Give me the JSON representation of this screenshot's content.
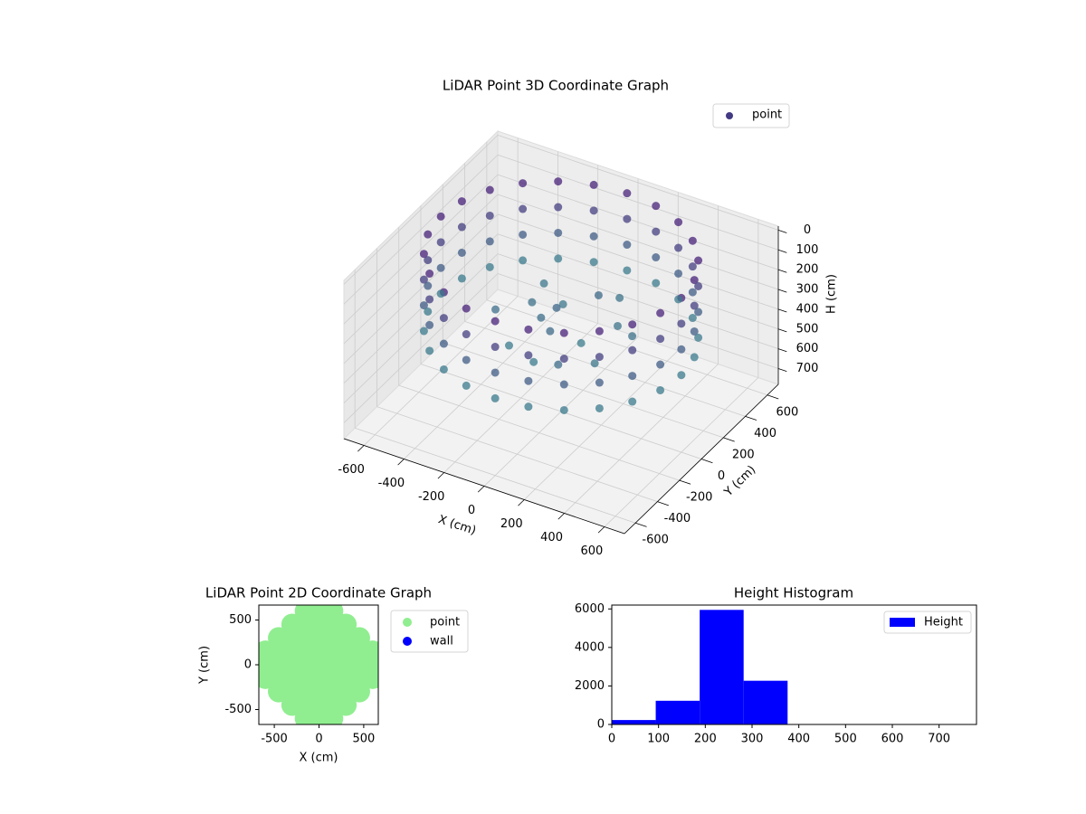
{
  "chart_data": [
    {
      "type": "scatter3d",
      "title": "LiDAR Point 3D Coordinate Graph",
      "xlabel": "X (cm)",
      "ylabel": "Y (cm)",
      "zlabel": "H (cm)",
      "xlim": [
        -700,
        700
      ],
      "ylim": [
        -700,
        700
      ],
      "zlim": [
        780,
        -20
      ],
      "xticks": [
        -600,
        -400,
        -200,
        0,
        200,
        400,
        600
      ],
      "yticks": [
        -600,
        -400,
        -200,
        0,
        200,
        400,
        600
      ],
      "zticks": [
        0,
        100,
        200,
        300,
        400,
        500,
        600,
        700
      ],
      "legend": "upper right",
      "series": [
        {
          "name": "point",
          "color": "#433a83",
          "colormap": [
            "#48217a",
            "#3b7c8c"
          ],
          "x": [
            600,
            580,
            520,
            424,
            300,
            155,
            0,
            -155,
            -300,
            -424,
            -520,
            -580,
            -600,
            -580,
            -520,
            -424,
            -300,
            -155,
            0,
            155,
            300,
            424,
            520,
            580,
            600,
            580,
            520,
            424,
            300,
            155,
            0,
            -155,
            -300,
            -424,
            -520,
            -580,
            -600,
            -580,
            -520,
            -424,
            -300,
            -155,
            0,
            155,
            300,
            424,
            520,
            580,
            600,
            580,
            520,
            424,
            300,
            155,
            0,
            -155,
            -300,
            -424,
            -520,
            -580,
            -600,
            -580,
            -520,
            -424,
            -300,
            -155,
            0,
            155,
            300,
            424,
            520,
            580,
            600,
            580,
            520,
            424,
            300,
            155,
            0,
            -155,
            -300,
            -424,
            -520,
            -580,
            -600,
            -580,
            -520,
            -424,
            -300,
            -155,
            0,
            155,
            300,
            424,
            520,
            580,
            -200,
            -100,
            0,
            100,
            200,
            -300,
            -150,
            50,
            250,
            150,
            -50,
            -250,
            300,
            0,
            100,
            -100
          ],
          "y": [
            0,
            155,
            300,
            424,
            520,
            580,
            600,
            580,
            520,
            424,
            300,
            155,
            0,
            -155,
            -300,
            -424,
            -520,
            -580,
            -600,
            -580,
            -520,
            -424,
            -300,
            -155,
            0,
            155,
            300,
            424,
            520,
            580,
            600,
            580,
            520,
            424,
            300,
            155,
            0,
            -155,
            -300,
            -424,
            -520,
            -580,
            -600,
            -580,
            -520,
            -424,
            -300,
            -155,
            0,
            155,
            300,
            424,
            520,
            580,
            600,
            580,
            520,
            424,
            300,
            155,
            0,
            -155,
            -300,
            -424,
            -520,
            -580,
            -600,
            -580,
            -520,
            -424,
            -300,
            -155,
            0,
            155,
            300,
            424,
            520,
            580,
            600,
            580,
            520,
            424,
            300,
            155,
            0,
            -155,
            -300,
            -424,
            -520,
            -580,
            -600,
            -580,
            -520,
            -424,
            -300,
            -155,
            100,
            200,
            -100,
            0,
            150,
            -50,
            -200,
            250,
            -150,
            -300,
            50,
            300,
            100,
            -250,
            350,
            0
          ],
          "h": [
            0,
            0,
            0,
            0,
            0,
            0,
            0,
            0,
            0,
            0,
            0,
            0,
            0,
            0,
            0,
            0,
            0,
            0,
            0,
            0,
            0,
            0,
            0,
            0,
            130,
            130,
            130,
            130,
            130,
            130,
            130,
            130,
            130,
            130,
            130,
            130,
            130,
            130,
            130,
            130,
            130,
            130,
            130,
            130,
            130,
            130,
            130,
            130,
            260,
            260,
            260,
            260,
            260,
            260,
            260,
            260,
            260,
            260,
            260,
            260,
            260,
            260,
            260,
            260,
            260,
            260,
            260,
            260,
            260,
            260,
            260,
            260,
            390,
            390,
            390,
            390,
            390,
            390,
            390,
            390,
            390,
            390,
            390,
            390,
            390,
            390,
            390,
            390,
            390,
            390,
            390,
            390,
            390,
            390,
            390,
            390,
            350,
            380,
            320,
            400,
            360,
            340,
            390,
            310,
            370,
            330,
            300,
            380,
            350,
            395,
            360,
            340
          ]
        }
      ]
    },
    {
      "type": "scatter",
      "title": "LiDAR Point 2D Coordinate Graph",
      "xlabel": "X (cm)",
      "ylabel": "Y (cm)",
      "xlim": [
        -673,
        663
      ],
      "ylim": [
        -667,
        667
      ],
      "xticks": [
        -500,
        0,
        500
      ],
      "yticks": [
        -500,
        0,
        500
      ],
      "legend": "outside upper left",
      "series": [
        {
          "name": "point",
          "color": "#90ee90",
          "x": [
            -600,
            -600,
            -600,
            -450,
            -450,
            -450,
            -450,
            -450,
            -300,
            -300,
            -300,
            -300,
            -300,
            -300,
            -300,
            -150,
            -150,
            -150,
            -150,
            -150,
            -150,
            -150,
            -150,
            -150,
            0,
            0,
            0,
            0,
            0,
            0,
            0,
            0,
            0,
            150,
            150,
            150,
            150,
            150,
            150,
            150,
            150,
            150,
            300,
            300,
            300,
            300,
            300,
            300,
            300,
            450,
            450,
            450,
            450,
            450,
            600,
            600,
            600
          ],
          "y": [
            -150,
            0,
            150,
            -300,
            -150,
            0,
            150,
            300,
            -450,
            -300,
            -150,
            0,
            150,
            300,
            450,
            -600,
            -450,
            -300,
            -150,
            0,
            150,
            300,
            450,
            600,
            -600,
            -450,
            -300,
            -150,
            0,
            150,
            300,
            450,
            600,
            -600,
            -450,
            -300,
            -150,
            0,
            150,
            300,
            450,
            600,
            -450,
            -300,
            -150,
            0,
            150,
            300,
            450,
            -300,
            -150,
            0,
            150,
            300,
            -150,
            0,
            150
          ]
        },
        {
          "name": "wall",
          "color": "#0000ff",
          "x": [],
          "y": []
        }
      ]
    },
    {
      "type": "histogram",
      "title": "Height Histogram",
      "bins": [
        0,
        94,
        188,
        282,
        376,
        470,
        564,
        658,
        752
      ],
      "xlim": [
        0,
        780
      ],
      "ylim": [
        0,
        6200
      ],
      "xticks": [
        0,
        100,
        200,
        300,
        400,
        500,
        600,
        700
      ],
      "yticks": [
        0,
        2000,
        4000,
        6000
      ],
      "legend": "upper right",
      "series": [
        {
          "name": "Height",
          "color": "#0000ff",
          "values": [
            230,
            1230,
            5950,
            2270,
            0,
            0,
            0,
            0
          ]
        }
      ]
    }
  ]
}
